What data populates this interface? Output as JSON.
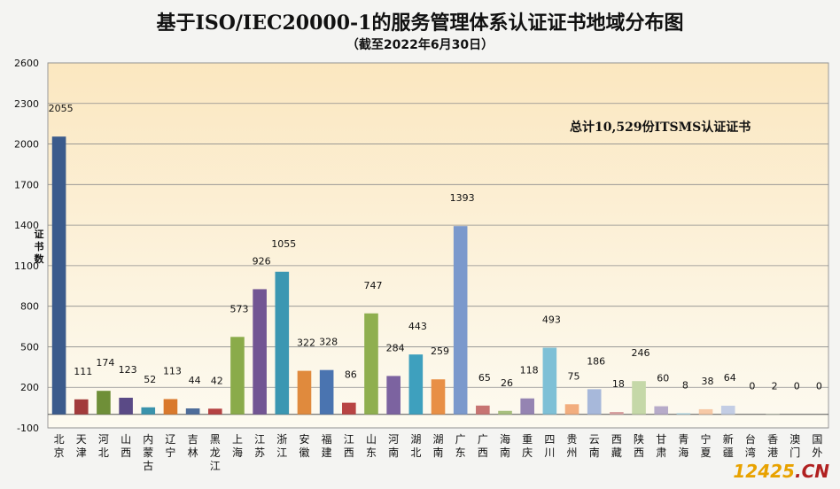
{
  "chart_data": {
    "type": "bar",
    "title": "基于ISO/IEC20000-1的服务管理体系认证证书地域分布图",
    "subtitle": "（截至2022年6月30日）",
    "ylabel": "证书数",
    "annotation": "总计10,529份ITSMS认证证书",
    "ylim": [
      -100,
      2600
    ],
    "yticks": [
      -100,
      200,
      500,
      800,
      1100,
      1400,
      1700,
      2000,
      2300,
      2600
    ],
    "grid": true,
    "categories": [
      "北京",
      "天津",
      "河北",
      "山西",
      "内蒙古",
      "辽宁",
      "吉林",
      "黑龙江",
      "上海",
      "江苏",
      "浙江",
      "安徽",
      "福建",
      "江西",
      "山东",
      "河南",
      "湖北",
      "湖南",
      "广东",
      "广西",
      "海南",
      "重庆",
      "四川",
      "贵州",
      "云南",
      "西藏",
      "陕西",
      "甘肃",
      "青海",
      "宁夏",
      "新疆",
      "台湾",
      "香港",
      "澳门",
      "国外"
    ],
    "values": [
      2055,
      111,
      174,
      123,
      52,
      113,
      44,
      42,
      573,
      926,
      1055,
      322,
      328,
      86,
      747,
      284,
      443,
      259,
      1393,
      65,
      26,
      118,
      493,
      75,
      186,
      18,
      246,
      60,
      8,
      38,
      64,
      0,
      2,
      0,
      0
    ],
    "colors": [
      "#3b5b8c",
      "#a23b3b",
      "#6f8f38",
      "#5a4a86",
      "#3a93ac",
      "#d9792c",
      "#4e6d9a",
      "#b54242",
      "#8aab4a",
      "#725593",
      "#3b97b2",
      "#e08a3d",
      "#4a74b0",
      "#b84443",
      "#8faf4f",
      "#7c63a0",
      "#3ea0be",
      "#e88f45",
      "#7b99cc",
      "#c77472",
      "#a8c07e",
      "#9584b2",
      "#7ec0d6",
      "#f2ad7e",
      "#a7b8da",
      "#d9a3a2",
      "#c5d8a8",
      "#b7abc9",
      "#a9d4e2",
      "#f7c9a6",
      "#c3cde4",
      "#e3c4c3",
      "#d6e3c6",
      "#d0c8dc",
      "#c7e2eb"
    ],
    "watermark": {
      "a": "12425",
      "b": ".CN"
    }
  }
}
